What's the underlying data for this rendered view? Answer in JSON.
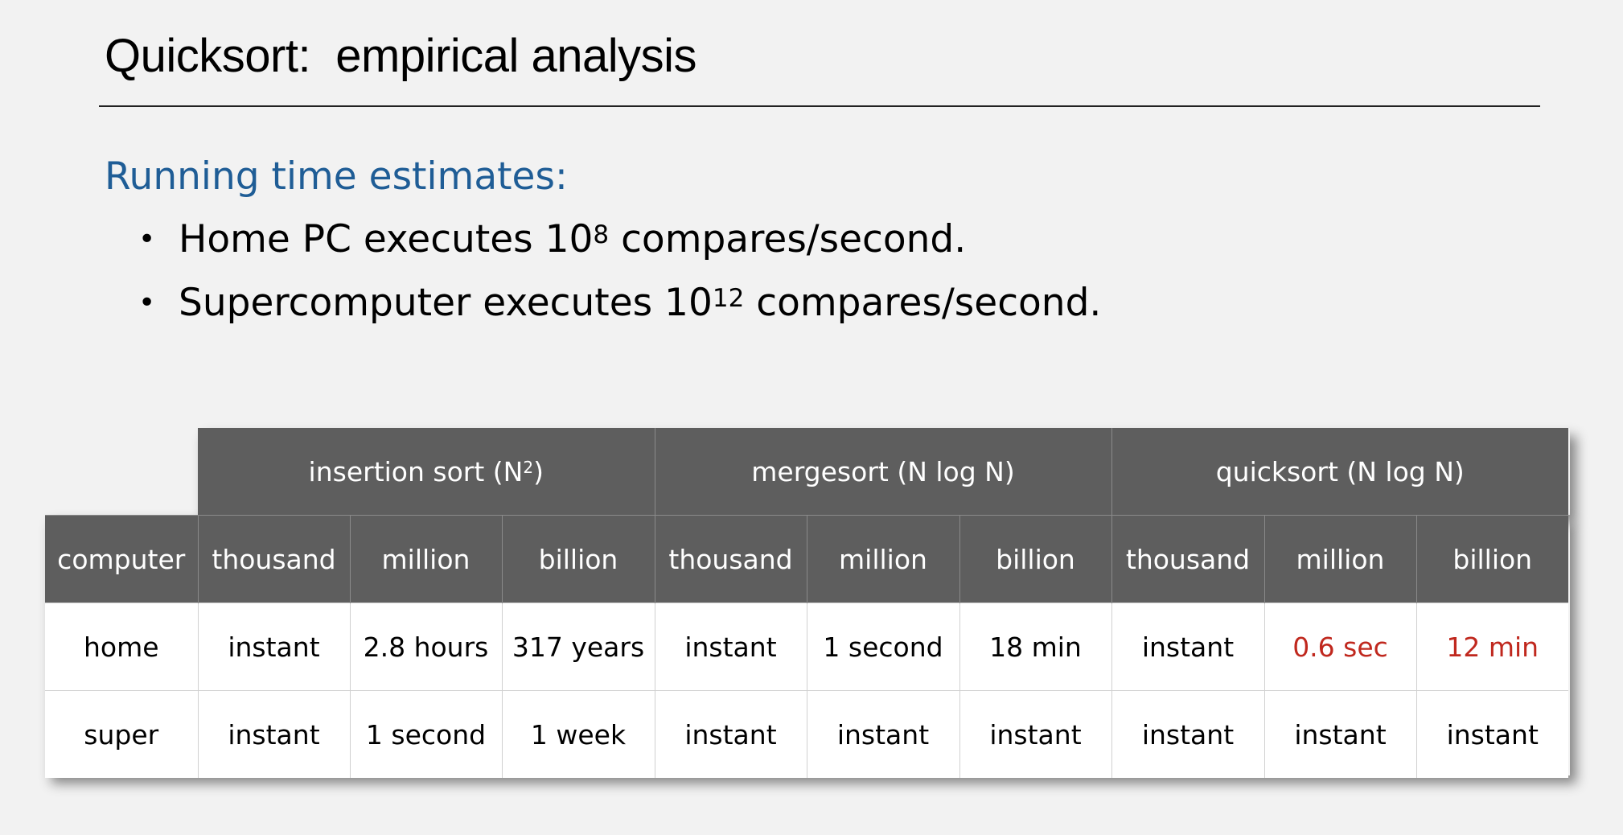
{
  "title": "Quicksort:  empirical analysis",
  "subheading": "Running time estimates:",
  "bullets": [
    {
      "before": "Home PC executes 10",
      "sup": "8",
      "after": " compares/second."
    },
    {
      "before": "Supercomputer executes 10",
      "sup": "12",
      "after": " compares/second."
    }
  ],
  "table": {
    "groups": [
      {
        "label_before": "insertion sort (N",
        "sup": "2",
        "label_after": ")"
      },
      {
        "label_before": "mergesort (N log N)",
        "sup": "",
        "label_after": ""
      },
      {
        "label_before": "quicksort (N log N)",
        "sup": "",
        "label_after": ""
      }
    ],
    "columns": [
      "computer",
      "thousand",
      "million",
      "billion",
      "thousand",
      "million",
      "billion",
      "thousand",
      "million",
      "billion"
    ],
    "rows": [
      [
        "home",
        "instant",
        "2.8 hours",
        "317 years",
        "instant",
        "1 second",
        "18 min",
        "instant",
        "0.6 sec",
        "12 min"
      ],
      [
        "super",
        "instant",
        "1 second",
        "1 week",
        "instant",
        "instant",
        "instant",
        "instant",
        "instant",
        "instant"
      ]
    ],
    "highlight_color": "#c0281e",
    "header_color": "#5e5e5e"
  },
  "colors": {
    "subheading": "#1f5d96",
    "background": "#f2f2f2"
  }
}
